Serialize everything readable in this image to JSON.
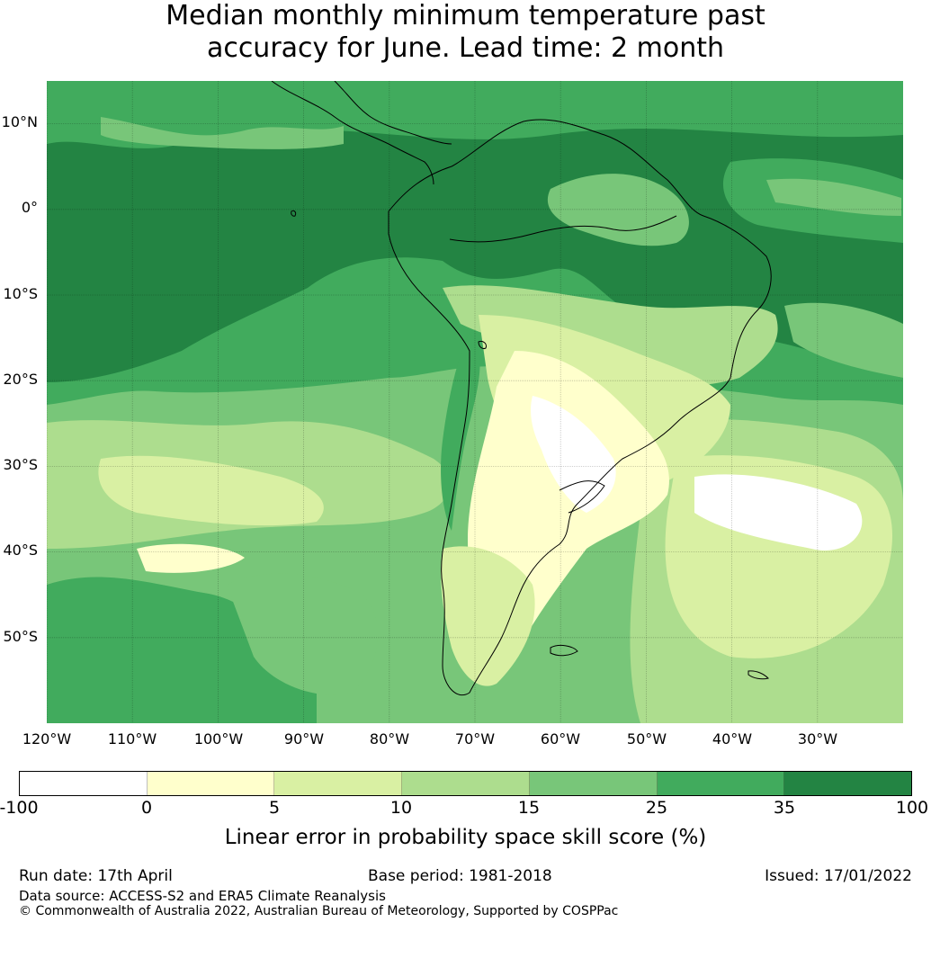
{
  "title": {
    "line1": "Median monthly minimum temperature past",
    "line2": "accuracy for June. Lead time: 2 month"
  },
  "map": {
    "lat_ticks": [
      "10°N",
      "0°",
      "10°S",
      "20°S",
      "30°S",
      "40°S",
      "50°S"
    ],
    "lon_ticks": [
      "120°W",
      "110°W",
      "100°W",
      "90°W",
      "80°W",
      "70°W",
      "60°W",
      "50°W",
      "40°W",
      "30°W"
    ],
    "extent": {
      "lon": [
        -120,
        -20
      ],
      "lat": [
        -60,
        15
      ]
    },
    "field_colors": {
      "ocean_north": "#238443",
      "ocean_mid": "#41ab5d",
      "ocean_south": "#78c679",
      "land_low": "#addd8e",
      "land_dry": "#d9f0a3",
      "land_core": "#ffffcc",
      "white": "#ffffff"
    }
  },
  "colorbar": {
    "ticks": [
      "-100",
      "0",
      "5",
      "10",
      "15",
      "25",
      "35",
      "100"
    ],
    "colors": [
      "#ffffff",
      "#ffffcc",
      "#d9f0a3",
      "#addd8e",
      "#78c679",
      "#41ab5d",
      "#238443"
    ],
    "label": "Linear error in probability space skill score (%)"
  },
  "footer": {
    "run_date": "Run date: 17th April",
    "base_period": "Base period: 1981-2018",
    "issued": "Issued: 17/01/2022",
    "data_source": "Data source: ACCESS-S2 and ERA5 Climate Reanalysis",
    "copyright": "© Commonwealth of Australia 2022, Australian Bureau of Meteorology, Supported by COSPPac"
  }
}
